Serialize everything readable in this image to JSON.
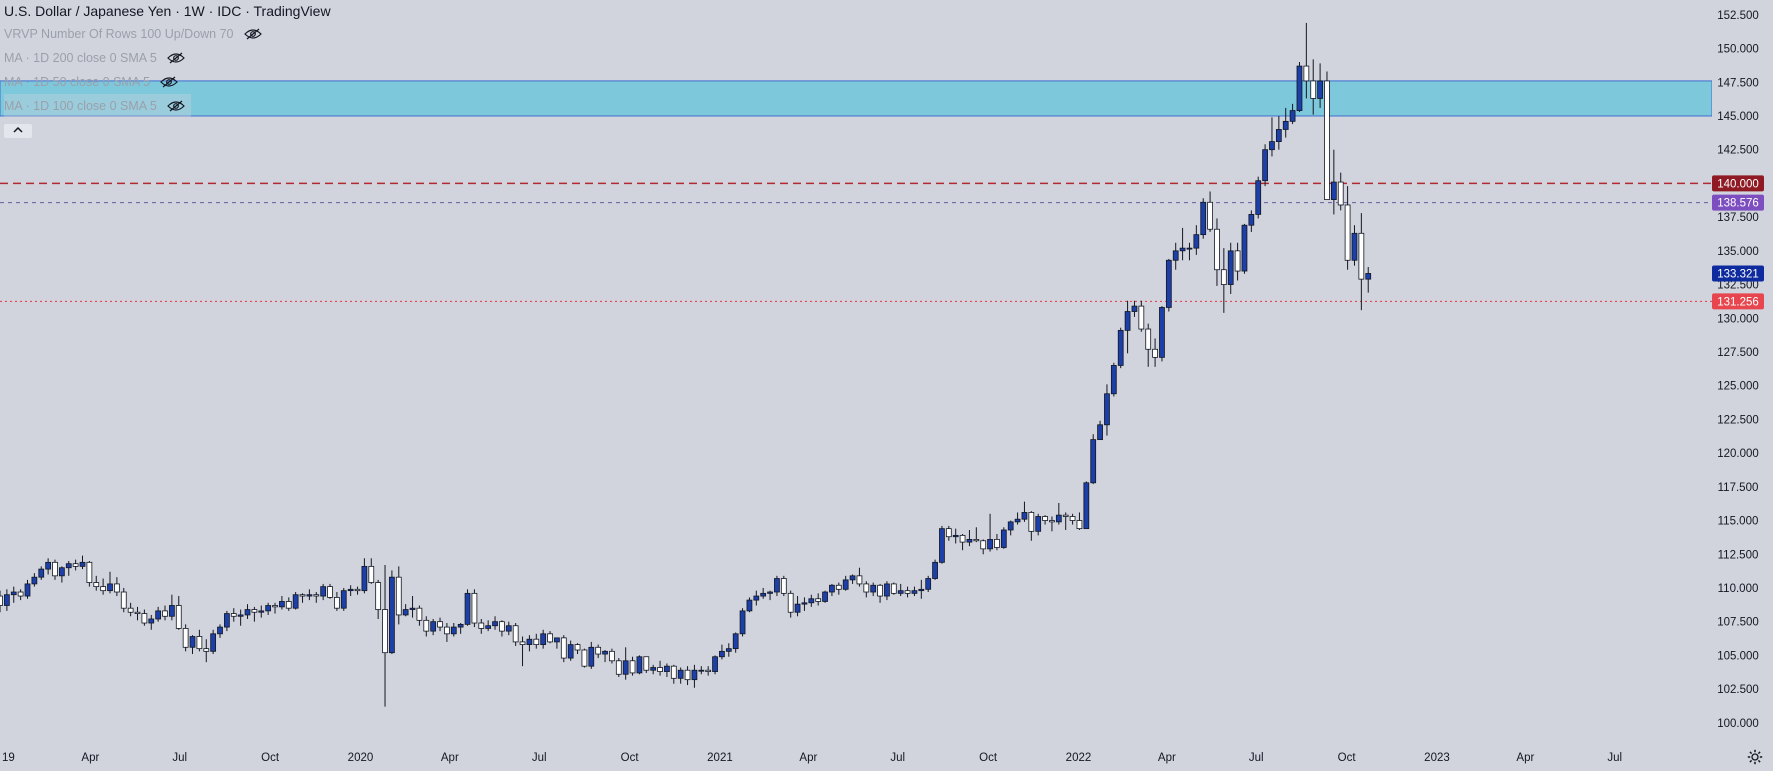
{
  "header": {
    "title": "U.S. Dollar / Japanese Yen · 1W · IDC · TradingView",
    "indicators": [
      "VRVP Number Of Rows 100 Up/Down 70",
      "MA · 1D 200 close 0 SMA 5",
      "MA · 1D 50 close 0 SMA 5",
      "MA · 1D 100 close 0 SMA 5"
    ],
    "collapse_icon": "chevron-up-icon",
    "eye_icon": "eye-slash-icon"
  },
  "colors": {
    "background": "#d1d4dc",
    "bull_fill": "#1c3fa8",
    "bear_fill": "#ffffff",
    "wick": "#131722",
    "zone": "#7ec8dc",
    "line_140": "#b22833",
    "line_138": "#6a5a9e",
    "line_131": "#e8353b",
    "label_140": "#8f1a24",
    "label_138": "#7d4ec0",
    "label_133": "#0d2a9e",
    "label_131": "#e8464e"
  },
  "chart_data": {
    "type": "candlestick",
    "title": "U.S. Dollar / Japanese Yen · 1W · IDC · TradingView",
    "ylim": [
      98.8,
      153.6
    ],
    "xlim": [
      "2018-12-30",
      "2023-10-08"
    ],
    "y_ticks": [
      100.0,
      102.5,
      105.0,
      107.5,
      110.0,
      112.5,
      115.0,
      117.5,
      120.0,
      122.5,
      125.0,
      127.5,
      130.0,
      132.5,
      135.0,
      137.5,
      142.5,
      145.0,
      147.5,
      150.0,
      152.5
    ],
    "y_tick_labels": [
      "100.000",
      "102.500",
      "105.000",
      "107.500",
      "110.000",
      "112.500",
      "115.000",
      "117.500",
      "120.000",
      "122.500",
      "125.000",
      "127.500",
      "130.000",
      "132.500",
      "135.000",
      "137.500",
      "142.500",
      "145.000",
      "147.500",
      "150.000",
      "152.500"
    ],
    "x_ticks": [
      {
        "label": "19",
        "date": "2019-01-01"
      },
      {
        "label": "Apr",
        "date": "2019-04-01"
      },
      {
        "label": "Jul",
        "date": "2019-07-01"
      },
      {
        "label": "Oct",
        "date": "2019-10-01"
      },
      {
        "label": "2020",
        "date": "2020-01-01"
      },
      {
        "label": "Apr",
        "date": "2020-04-01"
      },
      {
        "label": "Jul",
        "date": "2020-07-01"
      },
      {
        "label": "Oct",
        "date": "2020-10-01"
      },
      {
        "label": "2021",
        "date": "2021-01-01"
      },
      {
        "label": "Apr",
        "date": "2021-04-01"
      },
      {
        "label": "Jul",
        "date": "2021-07-01"
      },
      {
        "label": "Oct",
        "date": "2021-10-01"
      },
      {
        "label": "2022",
        "date": "2022-01-01"
      },
      {
        "label": "Apr",
        "date": "2022-04-01"
      },
      {
        "label": "Jul",
        "date": "2022-07-01"
      },
      {
        "label": "Oct",
        "date": "2022-10-01"
      },
      {
        "label": "2023",
        "date": "2023-01-01"
      },
      {
        "label": "Apr",
        "date": "2023-04-01"
      },
      {
        "label": "Jul",
        "date": "2023-07-01"
      }
    ],
    "zone": {
      "low": 145.0,
      "high": 147.6
    },
    "horizontal_lines": [
      {
        "value": 140.0,
        "style": "dashed",
        "label": "140.000"
      },
      {
        "value": 138.576,
        "style": "dashed",
        "label": "138.576"
      },
      {
        "value": 131.256,
        "style": "dotted",
        "label": "131.256"
      }
    ],
    "last_price": {
      "value": 133.321,
      "label": "133.321"
    },
    "candles_start_date": "2018-12-30",
    "candles": [
      [
        109.4,
        109.8,
        108.2,
        108.7
      ],
      [
        108.7,
        109.9,
        108.3,
        109.5
      ],
      [
        109.5,
        110.1,
        108.9,
        109.7
      ],
      [
        109.7,
        109.9,
        109.1,
        109.4
      ],
      [
        109.4,
        110.6,
        109.2,
        110.3
      ],
      [
        110.3,
        111.1,
        110.1,
        110.8
      ],
      [
        110.8,
        111.6,
        110.6,
        111.4
      ],
      [
        111.4,
        112.2,
        111.0,
        111.9
      ],
      [
        111.9,
        112.1,
        110.6,
        110.9
      ],
      [
        110.9,
        111.6,
        110.4,
        111.5
      ],
      [
        111.5,
        112.0,
        110.9,
        111.8
      ],
      [
        111.8,
        112.1,
        111.3,
        111.6
      ],
      [
        111.6,
        112.4,
        111.4,
        111.9
      ],
      [
        111.9,
        112.0,
        110.1,
        110.4
      ],
      [
        110.4,
        110.9,
        109.8,
        110.1
      ],
      [
        110.1,
        110.7,
        109.5,
        109.8
      ],
      [
        109.8,
        111.2,
        109.6,
        110.3
      ],
      [
        110.3,
        110.8,
        109.4,
        109.7
      ],
      [
        109.7,
        110.0,
        108.2,
        108.5
      ],
      [
        108.5,
        108.9,
        107.9,
        108.2
      ],
      [
        108.2,
        108.6,
        107.6,
        108.1
      ],
      [
        108.1,
        108.4,
        107.2,
        107.4
      ],
      [
        107.4,
        108.0,
        106.9,
        107.7
      ],
      [
        107.7,
        108.6,
        107.5,
        108.3
      ],
      [
        108.3,
        108.7,
        107.6,
        107.9
      ],
      [
        107.9,
        109.5,
        107.6,
        108.7
      ],
      [
        108.7,
        109.4,
        106.9,
        107.0
      ],
      [
        107.0,
        107.3,
        105.3,
        105.6
      ],
      [
        105.6,
        106.5,
        105.1,
        106.4
      ],
      [
        106.4,
        106.9,
        105.3,
        105.5
      ],
      [
        105.5,
        106.2,
        104.5,
        105.3
      ],
      [
        105.3,
        106.9,
        105.1,
        106.6
      ],
      [
        106.6,
        107.3,
        106.3,
        107.1
      ],
      [
        107.1,
        108.3,
        106.8,
        108.1
      ],
      [
        108.1,
        108.5,
        107.5,
        107.9
      ],
      [
        107.9,
        108.4,
        107.2,
        108.0
      ],
      [
        108.0,
        108.8,
        107.7,
        108.4
      ],
      [
        108.4,
        108.6,
        107.5,
        108.2
      ],
      [
        108.2,
        108.7,
        107.8,
        108.3
      ],
      [
        108.3,
        108.9,
        108.0,
        108.7
      ],
      [
        108.7,
        108.9,
        108.1,
        108.6
      ],
      [
        108.6,
        109.4,
        108.4,
        109.0
      ],
      [
        109.0,
        109.3,
        108.3,
        108.5
      ],
      [
        108.5,
        109.7,
        108.4,
        109.5
      ],
      [
        109.5,
        109.6,
        108.9,
        109.4
      ],
      [
        109.4,
        109.9,
        109.1,
        109.5
      ],
      [
        109.5,
        109.7,
        108.9,
        109.4
      ],
      [
        109.4,
        110.3,
        109.1,
        110.1
      ],
      [
        110.1,
        110.3,
        109.2,
        109.3
      ],
      [
        109.3,
        109.7,
        108.3,
        108.5
      ],
      [
        108.5,
        110.0,
        108.3,
        109.8
      ],
      [
        109.8,
        110.2,
        109.4,
        109.9
      ],
      [
        109.9,
        110.1,
        109.5,
        109.8
      ],
      [
        109.8,
        112.2,
        109.6,
        111.6
      ],
      [
        111.6,
        112.2,
        110.3,
        110.4
      ],
      [
        110.4,
        110.6,
        107.7,
        108.4
      ],
      [
        108.4,
        111.7,
        101.2,
        105.2
      ],
      [
        105.2,
        111.3,
        105.1,
        110.8
      ],
      [
        110.8,
        111.6,
        107.3,
        108.0
      ],
      [
        108.0,
        108.8,
        107.9,
        108.4
      ],
      [
        108.4,
        109.4,
        107.8,
        108.5
      ],
      [
        108.5,
        108.7,
        107.2,
        107.6
      ],
      [
        107.6,
        107.9,
        106.4,
        106.8
      ],
      [
        106.8,
        107.7,
        106.5,
        107.5
      ],
      [
        107.5,
        107.8,
        106.8,
        107.1
      ],
      [
        107.1,
        107.4,
        106.0,
        106.6
      ],
      [
        106.6,
        107.4,
        106.4,
        107.1
      ],
      [
        107.1,
        107.4,
        106.6,
        107.3
      ],
      [
        107.3,
        109.9,
        107.2,
        109.6
      ],
      [
        109.6,
        109.9,
        107.1,
        107.4
      ],
      [
        107.4,
        107.7,
        106.6,
        107.0
      ],
      [
        107.0,
        107.6,
        106.8,
        107.2
      ],
      [
        107.2,
        107.9,
        106.9,
        107.5
      ],
      [
        107.5,
        107.6,
        106.4,
        106.8
      ],
      [
        106.8,
        107.5,
        106.5,
        107.2
      ],
      [
        107.2,
        107.4,
        105.7,
        106.0
      ],
      [
        106.0,
        106.4,
        104.2,
        105.8
      ],
      [
        105.8,
        106.5,
        105.3,
        106.2
      ],
      [
        106.2,
        106.6,
        105.5,
        105.8
      ],
      [
        105.8,
        106.9,
        105.5,
        106.6
      ],
      [
        106.6,
        106.8,
        105.9,
        106.0
      ],
      [
        106.0,
        106.3,
        105.5,
        106.3
      ],
      [
        106.3,
        106.5,
        104.5,
        104.8
      ],
      [
        104.8,
        106.1,
        104.6,
        105.8
      ],
      [
        105.8,
        105.9,
        105.1,
        105.4
      ],
      [
        105.4,
        105.5,
        104.1,
        104.2
      ],
      [
        104.2,
        106.0,
        104.0,
        105.6
      ],
      [
        105.6,
        105.8,
        104.8,
        105.1
      ],
      [
        105.1,
        105.4,
        104.5,
        105.3
      ],
      [
        105.3,
        105.5,
        104.4,
        104.6
      ],
      [
        104.6,
        104.8,
        103.4,
        103.6
      ],
      [
        103.6,
        105.6,
        103.2,
        104.6
      ],
      [
        104.6,
        104.9,
        103.5,
        103.7
      ],
      [
        103.7,
        105.0,
        103.6,
        104.9
      ],
      [
        104.9,
        104.9,
        103.7,
        103.9
      ],
      [
        103.9,
        104.3,
        103.6,
        104.1
      ],
      [
        104.1,
        104.6,
        103.5,
        103.8
      ],
      [
        103.8,
        104.4,
        103.4,
        104.2
      ],
      [
        104.2,
        104.3,
        102.9,
        103.3
      ],
      [
        103.3,
        104.1,
        102.9,
        103.9
      ],
      [
        103.9,
        104.2,
        102.8,
        103.2
      ],
      [
        103.2,
        104.3,
        102.6,
        103.9
      ],
      [
        103.9,
        104.2,
        103.6,
        103.9
      ],
      [
        103.9,
        104.2,
        103.5,
        103.8
      ],
      [
        103.8,
        105.0,
        103.6,
        104.9
      ],
      [
        104.9,
        105.8,
        104.7,
        105.3
      ],
      [
        105.3,
        105.9,
        104.9,
        105.5
      ],
      [
        105.5,
        106.7,
        105.2,
        106.6
      ],
      [
        106.6,
        108.5,
        106.4,
        108.3
      ],
      [
        108.3,
        109.3,
        108.2,
        109.1
      ],
      [
        109.1,
        109.8,
        108.7,
        109.4
      ],
      [
        109.4,
        110.0,
        109.2,
        109.6
      ],
      [
        109.6,
        109.8,
        109.1,
        109.7
      ],
      [
        109.7,
        110.9,
        109.4,
        110.7
      ],
      [
        110.7,
        110.9,
        109.4,
        109.6
      ],
      [
        109.6,
        109.8,
        107.8,
        108.2
      ],
      [
        108.2,
        109.4,
        107.9,
        108.8
      ],
      [
        108.8,
        109.3,
        108.3,
        108.9
      ],
      [
        108.9,
        109.5,
        108.6,
        109.2
      ],
      [
        109.2,
        109.6,
        108.7,
        109.0
      ],
      [
        109.0,
        109.8,
        108.9,
        109.7
      ],
      [
        109.7,
        110.3,
        109.4,
        110.2
      ],
      [
        110.2,
        110.4,
        109.5,
        109.9
      ],
      [
        109.9,
        110.9,
        109.8,
        110.6
      ],
      [
        110.6,
        111.0,
        110.3,
        110.9
      ],
      [
        110.9,
        111.5,
        110.1,
        110.3
      ],
      [
        110.3,
        110.5,
        109.3,
        109.7
      ],
      [
        109.7,
        110.4,
        109.4,
        110.2
      ],
      [
        110.2,
        110.3,
        108.9,
        109.4
      ],
      [
        109.4,
        110.5,
        109.1,
        110.3
      ],
      [
        110.3,
        110.4,
        109.5,
        109.6
      ],
      [
        109.6,
        110.3,
        109.4,
        109.8
      ],
      [
        109.8,
        110.1,
        109.3,
        109.6
      ],
      [
        109.6,
        110.1,
        109.4,
        109.8
      ],
      [
        109.8,
        110.6,
        109.2,
        109.9
      ],
      [
        109.9,
        110.9,
        109.7,
        110.7
      ],
      [
        110.7,
        112.1,
        110.6,
        111.9
      ],
      [
        111.9,
        114.6,
        111.8,
        114.4
      ],
      [
        114.4,
        114.6,
        113.5,
        113.8
      ],
      [
        113.8,
        114.4,
        113.3,
        113.9
      ],
      [
        113.9,
        114.0,
        112.8,
        113.4
      ],
      [
        113.4,
        114.3,
        113.1,
        113.6
      ],
      [
        113.6,
        114.5,
        113.4,
        113.5
      ],
      [
        113.5,
        113.6,
        112.5,
        112.9
      ],
      [
        112.9,
        115.5,
        112.7,
        113.6
      ],
      [
        113.6,
        114.0,
        112.8,
        113.0
      ],
      [
        113.0,
        114.5,
        112.9,
        114.3
      ],
      [
        114.3,
        115.0,
        113.9,
        114.9
      ],
      [
        114.9,
        115.6,
        114.7,
        115.1
      ],
      [
        115.1,
        116.4,
        114.9,
        115.6
      ],
      [
        115.6,
        115.7,
        113.5,
        114.2
      ],
      [
        114.2,
        115.5,
        113.9,
        115.3
      ],
      [
        115.3,
        115.4,
        114.7,
        115.0
      ],
      [
        115.0,
        115.3,
        114.2,
        114.9
      ],
      [
        114.9,
        116.3,
        114.7,
        115.4
      ],
      [
        115.4,
        115.6,
        114.3,
        115.3
      ],
      [
        115.3,
        115.5,
        114.7,
        115.0
      ],
      [
        115.0,
        115.6,
        114.3,
        114.4
      ],
      [
        114.4,
        117.9,
        114.4,
        117.8
      ],
      [
        117.8,
        121.4,
        117.7,
        121.0
      ],
      [
        121.0,
        122.4,
        121.0,
        122.1
      ],
      [
        122.1,
        125.1,
        121.3,
        124.4
      ],
      [
        124.4,
        126.7,
        124.2,
        126.5
      ],
      [
        126.5,
        129.3,
        126.3,
        129.1
      ],
      [
        129.1,
        131.3,
        127.4,
        130.5
      ],
      [
        130.5,
        131.3,
        130.1,
        130.9
      ],
      [
        130.9,
        131.3,
        129.0,
        129.2
      ],
      [
        129.2,
        129.6,
        126.4,
        127.7
      ],
      [
        127.7,
        128.5,
        126.4,
        127.1
      ],
      [
        127.1,
        130.9,
        126.8,
        130.8
      ],
      [
        130.8,
        134.4,
        130.5,
        134.3
      ],
      [
        134.3,
        135.6,
        133.6,
        135.0
      ],
      [
        135.0,
        136.7,
        134.3,
        135.2
      ],
      [
        135.2,
        135.6,
        134.3,
        135.2
      ],
      [
        135.2,
        136.9,
        134.7,
        136.2
      ],
      [
        136.2,
        138.9,
        135.9,
        138.6
      ],
      [
        138.6,
        139.4,
        136.4,
        136.6
      ],
      [
        136.6,
        137.4,
        132.4,
        133.6
      ],
      [
        133.6,
        135.2,
        130.4,
        132.5
      ],
      [
        132.5,
        135.6,
        131.8,
        135.0
      ],
      [
        135.0,
        135.6,
        132.8,
        133.5
      ],
      [
        133.5,
        137.0,
        133.3,
        136.9
      ],
      [
        136.9,
        138.0,
        136.4,
        137.7
      ],
      [
        137.7,
        140.5,
        137.4,
        140.2
      ],
      [
        140.2,
        142.9,
        139.8,
        142.5
      ],
      [
        142.5,
        144.9,
        142.0,
        143.1
      ],
      [
        143.1,
        145.0,
        142.5,
        144.0
      ],
      [
        144.0,
        145.6,
        143.4,
        144.6
      ],
      [
        144.6,
        145.9,
        144.4,
        145.4
      ],
      [
        145.4,
        149.0,
        145.3,
        148.7
      ],
      [
        148.7,
        151.9,
        146.3,
        147.6
      ],
      [
        147.6,
        149.2,
        145.1,
        146.3
      ],
      [
        146.3,
        148.9,
        145.6,
        147.6
      ],
      [
        147.6,
        148.3,
        138.9,
        138.8
      ],
      [
        138.8,
        142.5,
        137.7,
        140.1
      ],
      [
        140.1,
        140.8,
        138.0,
        138.4
      ],
      [
        138.4,
        139.8,
        133.6,
        134.3
      ],
      [
        134.3,
        136.9,
        133.9,
        136.3
      ],
      [
        136.3,
        137.8,
        130.6,
        132.9
      ],
      [
        132.9,
        133.8,
        131.9,
        133.321
      ]
    ]
  }
}
